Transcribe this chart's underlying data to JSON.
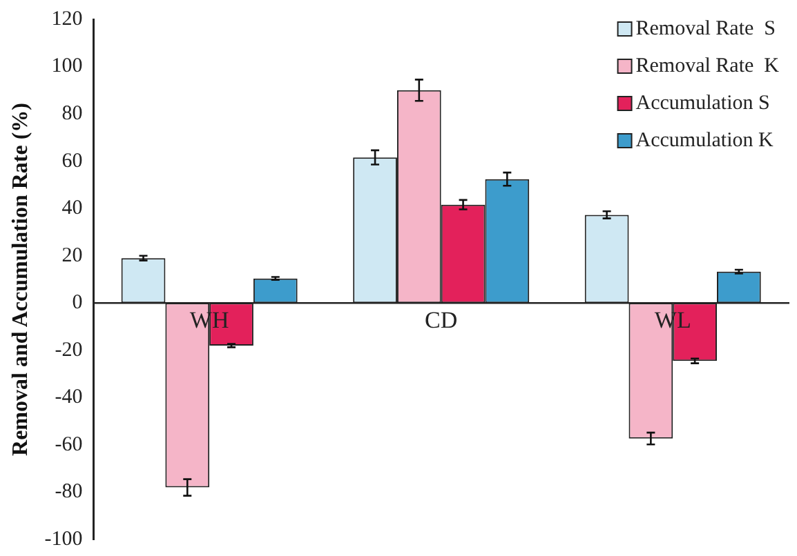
{
  "chart_data": {
    "type": "bar",
    "ylabel": "Removal and Accumulation Rate (%)",
    "categories": [
      "WH",
      "CD",
      "WL"
    ],
    "series": [
      {
        "name": "Removal Rate  S",
        "color": "#cfe8f3",
        "values": [
          19,
          61.6,
          37.3
        ],
        "errors": [
          1,
          3,
          1.5
        ]
      },
      {
        "name": "Removal Rate  K",
        "color": "#f5b5c8",
        "values": [
          -78,
          90,
          -57.3
        ],
        "errors": [
          3.5,
          4.5,
          2.5
        ]
      },
      {
        "name": "Accumulation S",
        "color": "#e3215b",
        "values": [
          -18,
          41.6,
          -24.5
        ],
        "errors": [
          0.7,
          2,
          1
        ]
      },
      {
        "name": "Accumulation K",
        "color": "#3d9ccc",
        "values": [
          10.4,
          52.4,
          13.3
        ],
        "errors": [
          0.6,
          2.8,
          0.8
        ]
      }
    ],
    "ylim": [
      -100,
      120
    ],
    "yticks": [
      -100,
      -80,
      -60,
      -40,
      -20,
      0,
      20,
      40,
      60,
      80,
      100,
      120
    ],
    "grid": false,
    "legend": "top right"
  }
}
